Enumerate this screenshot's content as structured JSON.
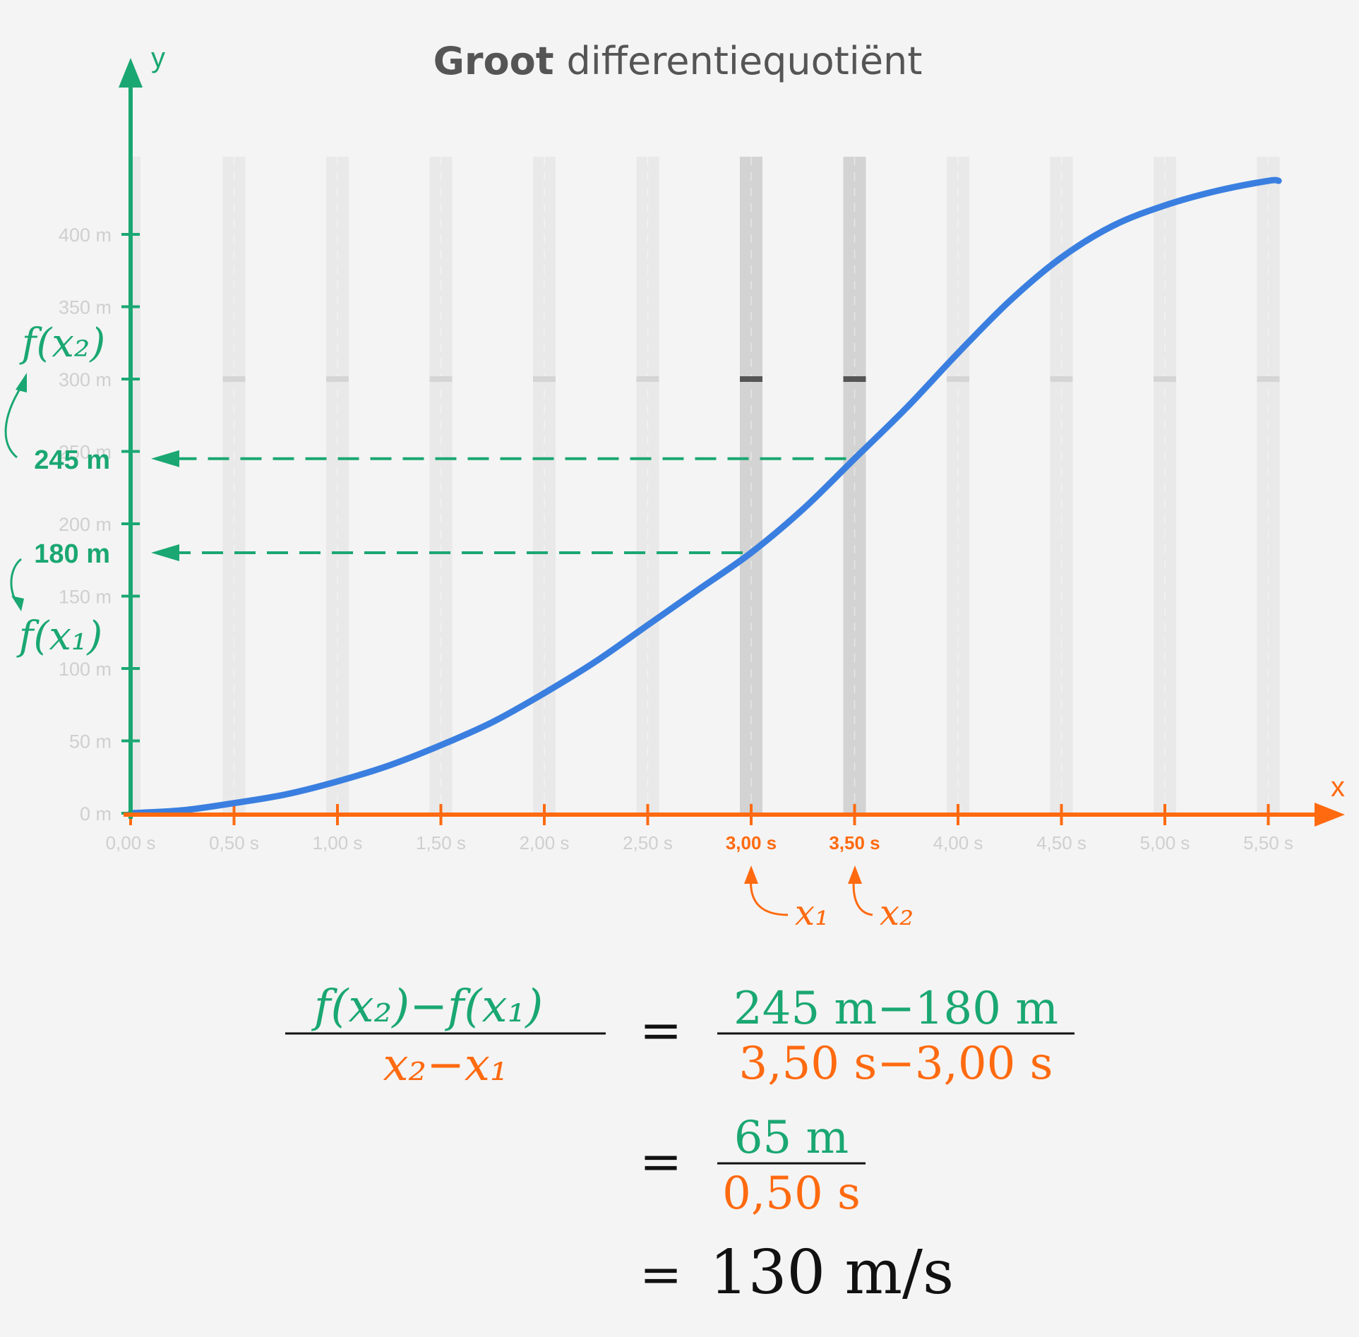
{
  "title": {
    "bold": "Groot",
    "rest": "differentiequotiënt"
  },
  "chart_data": {
    "type": "line",
    "title": "Groot differentiequotiënt",
    "xlabel": "x",
    "ylabel": "y",
    "x_ticks": [
      "0,00 s",
      "0,50 s",
      "1,00 s",
      "1,50 s",
      "2,00 s",
      "2,50 s",
      "3,00 s",
      "3,50 s",
      "4,00 s",
      "4,50 s",
      "5,00 s",
      "5,50 s"
    ],
    "y_ticks": [
      "0 m",
      "50 m",
      "100 m",
      "150 m",
      "200 m",
      "250 m",
      "300 m",
      "350 m",
      "400 m"
    ],
    "xlim": [
      0,
      5.75
    ],
    "ylim": [
      0,
      430
    ],
    "series": [
      {
        "x": [
          0,
          0.25,
          0.5,
          0.75,
          1,
          1.25,
          1.5,
          1.75,
          2,
          2.25,
          2.5,
          2.75,
          3,
          3.25,
          3.5,
          3.75,
          4,
          4.25,
          4.5,
          4.75,
          5,
          5.25,
          5.5,
          5.55
        ],
        "values": [
          0,
          2,
          7,
          13,
          22,
          33,
          47,
          63,
          83,
          105,
          130,
          155,
          180,
          210,
          245,
          280,
          318,
          354,
          384,
          406,
          420,
          430,
          437,
          437
        ],
        "color": "#3a7fe0"
      }
    ],
    "highlight": {
      "x1": 3.0,
      "x2": 3.5,
      "fx1": 180,
      "fx2": 245,
      "x1_label": "3,00 s",
      "x2_label": "3,50 s",
      "fx1_label": "180 m",
      "fx2_label": "245 m"
    },
    "annotations": {
      "fx1": "f(x₁)",
      "fx2": "f(x₂)",
      "x1": "x₁",
      "x2": "x₂"
    },
    "colors": {
      "y_axis": "#1aa772",
      "x_axis": "#ff6a10",
      "curve": "#3a7fe0"
    }
  },
  "formula": {
    "lhs_num_a": "f(x₂)",
    "lhs_num_minus": "−",
    "lhs_num_b": "f(x₁)",
    "lhs_den_a": "x₂",
    "lhs_den_minus": "−",
    "lhs_den_b": "x₁",
    "eq": "=",
    "rhs1_num_a": "245 m",
    "rhs1_num_minus": "−",
    "rhs1_num_b": "180 m",
    "rhs1_den_a": "3,50 s",
    "rhs1_den_minus": "−",
    "rhs1_den_b": "3,00 s",
    "rhs2_num": "65 m",
    "rhs2_den": "0,50 s",
    "result": "130 m/s"
  }
}
